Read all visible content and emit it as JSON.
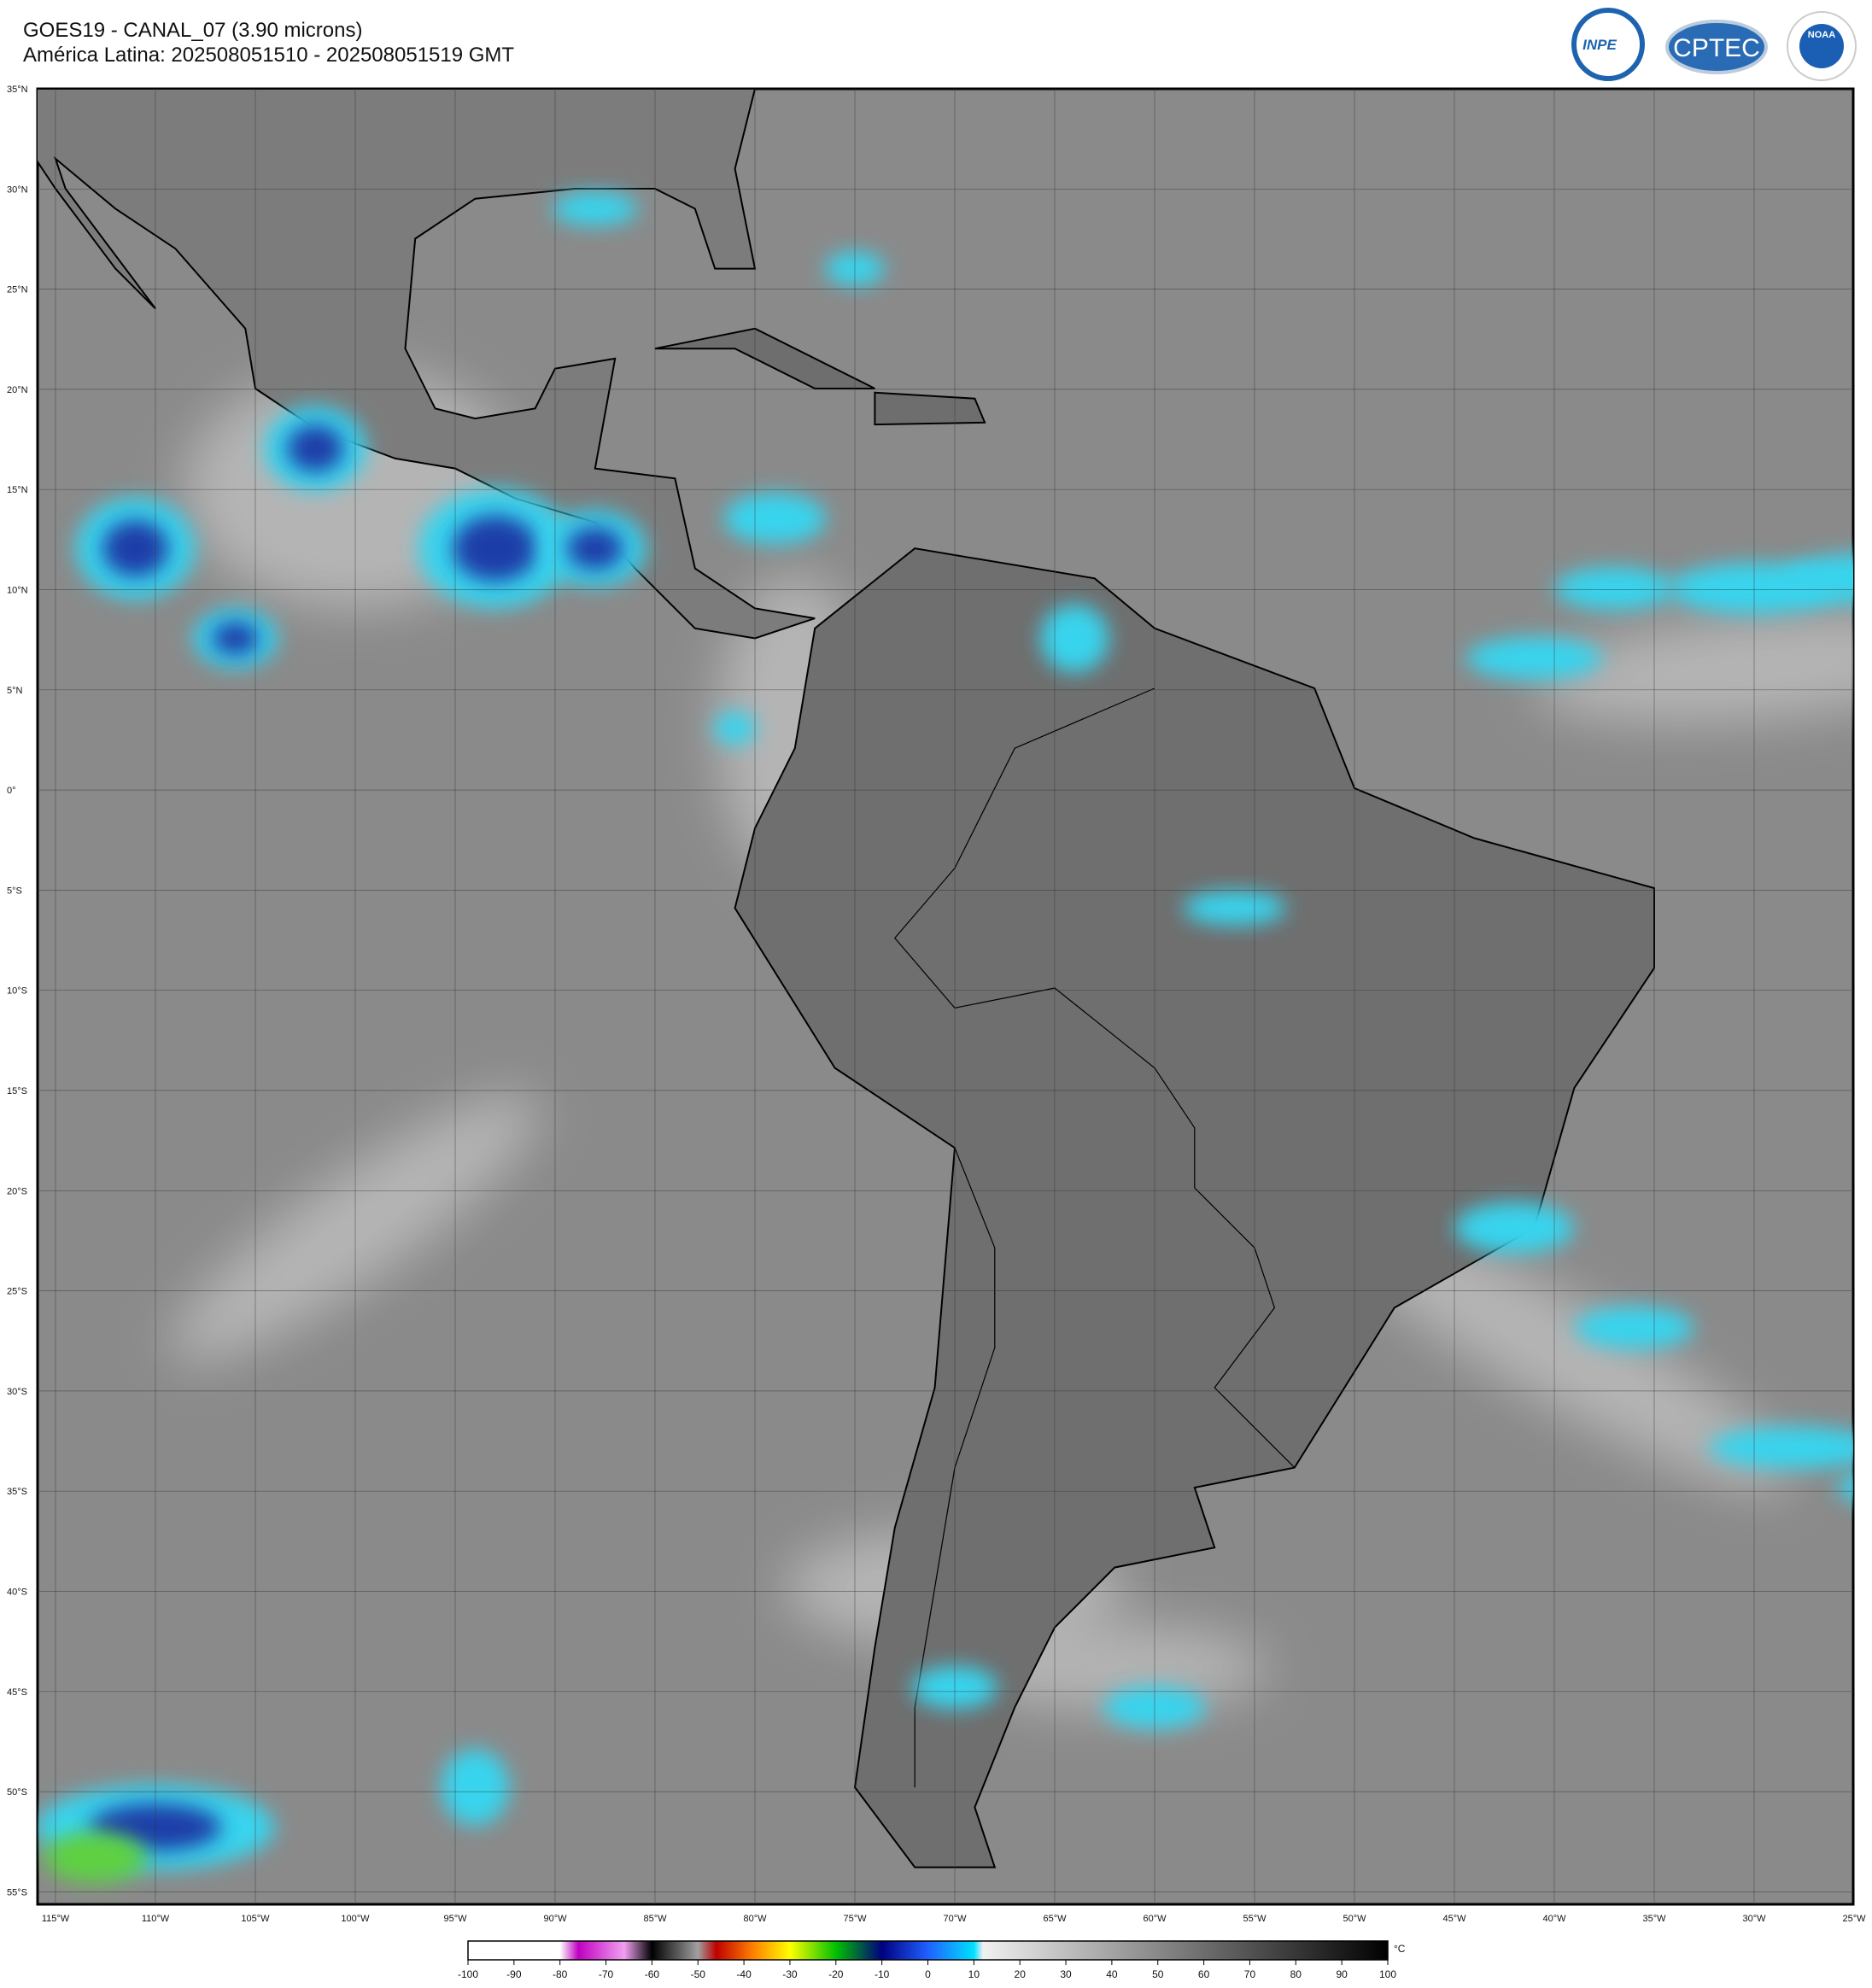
{
  "header": {
    "title": "GOES19 - CANAL_07 (3.90 microns)",
    "subtitle": "América Latina: 202508051510 - 202508051519 GMT"
  },
  "logos": [
    "INPE",
    "CPTEC",
    "NOAA"
  ],
  "map": {
    "lat_labels": [
      "35°N",
      "30°N",
      "25°N",
      "20°N",
      "15°N",
      "10°N",
      "5°N",
      "0°",
      "5°S",
      "10°S",
      "15°S",
      "20°S",
      "25°S",
      "30°S",
      "35°S",
      "40°S",
      "45°S",
      "50°S",
      "55°S"
    ],
    "lon_labels": [
      "115°W",
      "110°W",
      "105°W",
      "100°W",
      "95°W",
      "90°W",
      "85°W",
      "80°W",
      "75°W",
      "70°W",
      "65°W",
      "60°W",
      "55°W",
      "50°W",
      "45°W",
      "40°W",
      "35°W",
      "30°W",
      "25°W"
    ]
  },
  "colorbar": {
    "ticks": [
      -100,
      -90,
      -80,
      -70,
      -60,
      -50,
      -40,
      -30,
      -20,
      -10,
      0,
      10,
      20,
      30,
      40,
      50,
      60,
      70,
      80,
      90,
      100
    ],
    "unit": "°C"
  }
}
